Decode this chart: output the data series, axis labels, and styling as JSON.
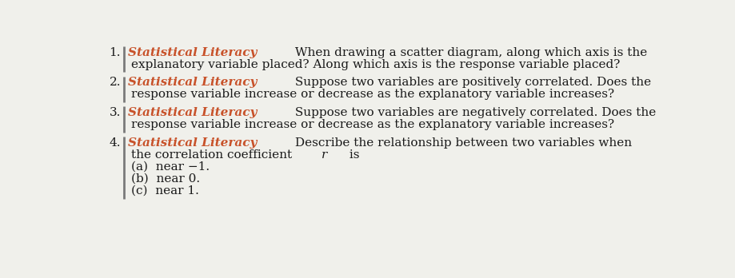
{
  "background_color": "#f0f0eb",
  "text_color": "#1a1a1a",
  "orange_color": "#c8522a",
  "bar_color": "#7a7a7a",
  "font_size_main": 11.0,
  "items": [
    {
      "number": "1.",
      "label": "Statistical Literacy",
      "line1_rest": " When drawing a scatter diagram, along which axis is the",
      "extra_lines": [
        "explanatory variable placed? Along which axis is the response variable placed?"
      ]
    },
    {
      "number": "2.",
      "label": "Statistical Literacy",
      "line1_rest": " Suppose two variables are positively correlated. Does the",
      "extra_lines": [
        "response variable increase or decrease as the explanatory variable increases?"
      ]
    },
    {
      "number": "3.",
      "label": "Statistical Literacy",
      "line1_rest": " Suppose two variables are negatively correlated. Does the",
      "extra_lines": [
        "response variable increase or decrease as the explanatory variable increases?"
      ]
    },
    {
      "number": "4.",
      "label": "Statistical Literacy",
      "line1_rest": " Describe the relationship between two variables when",
      "extra_lines": [
        "the correlation coefficient r is",
        "(a)  near −1.",
        "(b)  near 0.",
        "(c)  near 1."
      ]
    }
  ]
}
